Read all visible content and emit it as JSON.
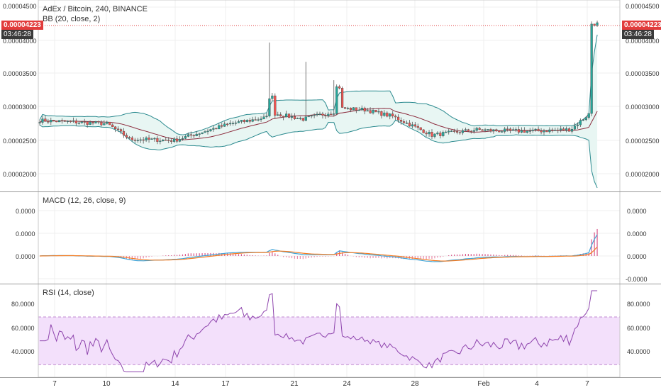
{
  "header": {
    "symbol_title": "AdEx / Bitcoin, 240, BINANCE",
    "bb_title": "BB (20, close, 2)"
  },
  "price_tags": {
    "last_price": "0.00004223",
    "countdown": "03:46:28"
  },
  "panes": {
    "price": {
      "y_ticks": [
        "0.00004500",
        "0.00004000",
        "0.00003500",
        "0.00003000",
        "0.00002500",
        "0.00002000"
      ]
    },
    "macd": {
      "title": "MACD (12, 26, close, 9)",
      "y_ticks": [
        "0.0000",
        "0.0000",
        "0.0000",
        "-0.0000"
      ],
      "y_ticks_left": [
        "0.0000",
        "0.0000",
        "0.0000"
      ]
    },
    "rsi": {
      "title": "RSI (14, close)",
      "y_ticks": [
        "80.0000",
        "60.0000",
        "40.0000"
      ]
    }
  },
  "x_axis": {
    "ticks": [
      "7",
      "10",
      "14",
      "17",
      "21",
      "24",
      "28",
      "Feb",
      "4",
      "7"
    ]
  },
  "colors": {
    "up": "#26a69a",
    "down": "#ef5350",
    "bb_band": "#2b8a8f",
    "bb_basis": "#8b2a3c",
    "bb_fill": "#e8f6f3",
    "macd_line": "#3fa4d8",
    "signal_line": "#f57c22",
    "rsi_line": "#8e44ad",
    "rsi_band": "#f3e0fb",
    "price_line": "#e23c3c"
  }
}
